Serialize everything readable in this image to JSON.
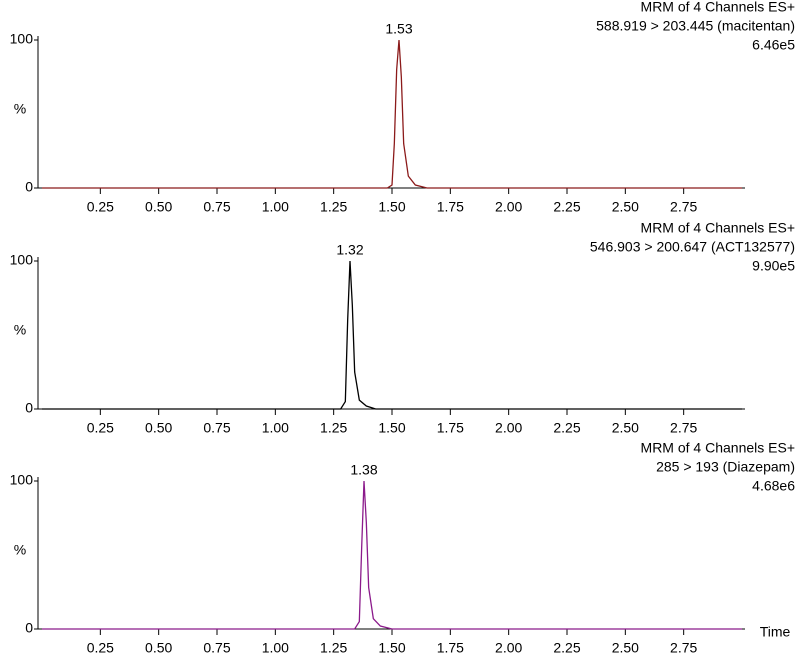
{
  "chart_data": [
    {
      "type": "line",
      "header": [
        "MRM of 4 Channels ES+",
        "588.919 > 203.445 (macitentan)",
        "6.46e5"
      ],
      "color": "#8b1a1a",
      "x": [
        0,
        1.48,
        1.5,
        1.51,
        1.52,
        1.53,
        1.54,
        1.55,
        1.57,
        1.6,
        1.65,
        3.0
      ],
      "y": [
        0,
        0,
        2,
        30,
        80,
        100,
        75,
        30,
        8,
        2,
        0,
        0
      ],
      "peak": 1.53,
      "ylabel": "%",
      "xlim": [
        0,
        3.0
      ],
      "ylim": [
        0,
        100
      ],
      "yticks": [
        0,
        100
      ],
      "xticks": [
        {
          "value": 0.25,
          "label": "0.25"
        },
        {
          "value": 0.5,
          "label": "0.50"
        },
        {
          "value": 0.75,
          "label": "0.75"
        },
        {
          "value": 1.0,
          "label": "1.00"
        },
        {
          "value": 1.25,
          "label": "1.25"
        },
        {
          "value": 1.5,
          "label": "1.50"
        },
        {
          "value": 1.75,
          "label": "1.75"
        },
        {
          "value": 2.0,
          "label": "2.00"
        },
        {
          "value": 2.25,
          "label": "2.25"
        },
        {
          "value": 2.5,
          "label": "2.50"
        },
        {
          "value": 2.75,
          "label": "2.75"
        }
      ]
    },
    {
      "type": "line",
      "header": [
        "MRM of 4 Channels ES+",
        "546.903 > 200.647 (ACT132577)",
        "9.90e5"
      ],
      "color": "#000000",
      "x": [
        0,
        1.28,
        1.3,
        1.31,
        1.32,
        1.33,
        1.34,
        1.36,
        1.39,
        1.43,
        3.0
      ],
      "y": [
        0,
        0,
        5,
        60,
        100,
        70,
        25,
        6,
        2,
        0,
        0
      ],
      "peak": 1.32,
      "ylabel": "%",
      "xlim": [
        0,
        3.0
      ],
      "ylim": [
        0,
        100
      ],
      "yticks": [
        0,
        100
      ],
      "xticks": [
        {
          "value": 0.25,
          "label": "0.25"
        },
        {
          "value": 0.5,
          "label": "0.50"
        },
        {
          "value": 0.75,
          "label": "0.75"
        },
        {
          "value": 1.0,
          "label": "1.00"
        },
        {
          "value": 1.25,
          "label": "1.25"
        },
        {
          "value": 1.5,
          "label": "1.50"
        },
        {
          "value": 1.75,
          "label": "1.75"
        },
        {
          "value": 2.0,
          "label": "2.00"
        },
        {
          "value": 2.25,
          "label": "2.25"
        },
        {
          "value": 2.5,
          "label": "2.50"
        },
        {
          "value": 2.75,
          "label": "2.75"
        }
      ]
    },
    {
      "type": "line",
      "header": [
        "MRM of 4 Channels ES+",
        "285 > 193 (Diazepam)",
        "4.68e6"
      ],
      "color": "#8b1a8b",
      "x": [
        0,
        1.34,
        1.36,
        1.37,
        1.38,
        1.39,
        1.4,
        1.42,
        1.45,
        1.5,
        3.0
      ],
      "y": [
        0,
        0,
        5,
        55,
        100,
        72,
        28,
        7,
        2,
        0,
        0
      ],
      "peak": 1.38,
      "ylabel": "%",
      "xlabel": "Time",
      "xlim": [
        0,
        3.0
      ],
      "ylim": [
        0,
        100
      ],
      "yticks": [
        0,
        100
      ],
      "xticks": [
        {
          "value": 0.25,
          "label": "0.25"
        },
        {
          "value": 0.5,
          "label": "0.50"
        },
        {
          "value": 0.75,
          "label": "0.75"
        },
        {
          "value": 1.0,
          "label": "1.00"
        },
        {
          "value": 1.25,
          "label": "1.25"
        },
        {
          "value": 1.5,
          "label": "1.50"
        },
        {
          "value": 1.75,
          "label": "1.75"
        },
        {
          "value": 2.0,
          "label": "2.00"
        },
        {
          "value": 2.25,
          "label": "2.25"
        },
        {
          "value": 2.5,
          "label": "2.50"
        },
        {
          "value": 2.75,
          "label": "2.75"
        }
      ]
    }
  ]
}
